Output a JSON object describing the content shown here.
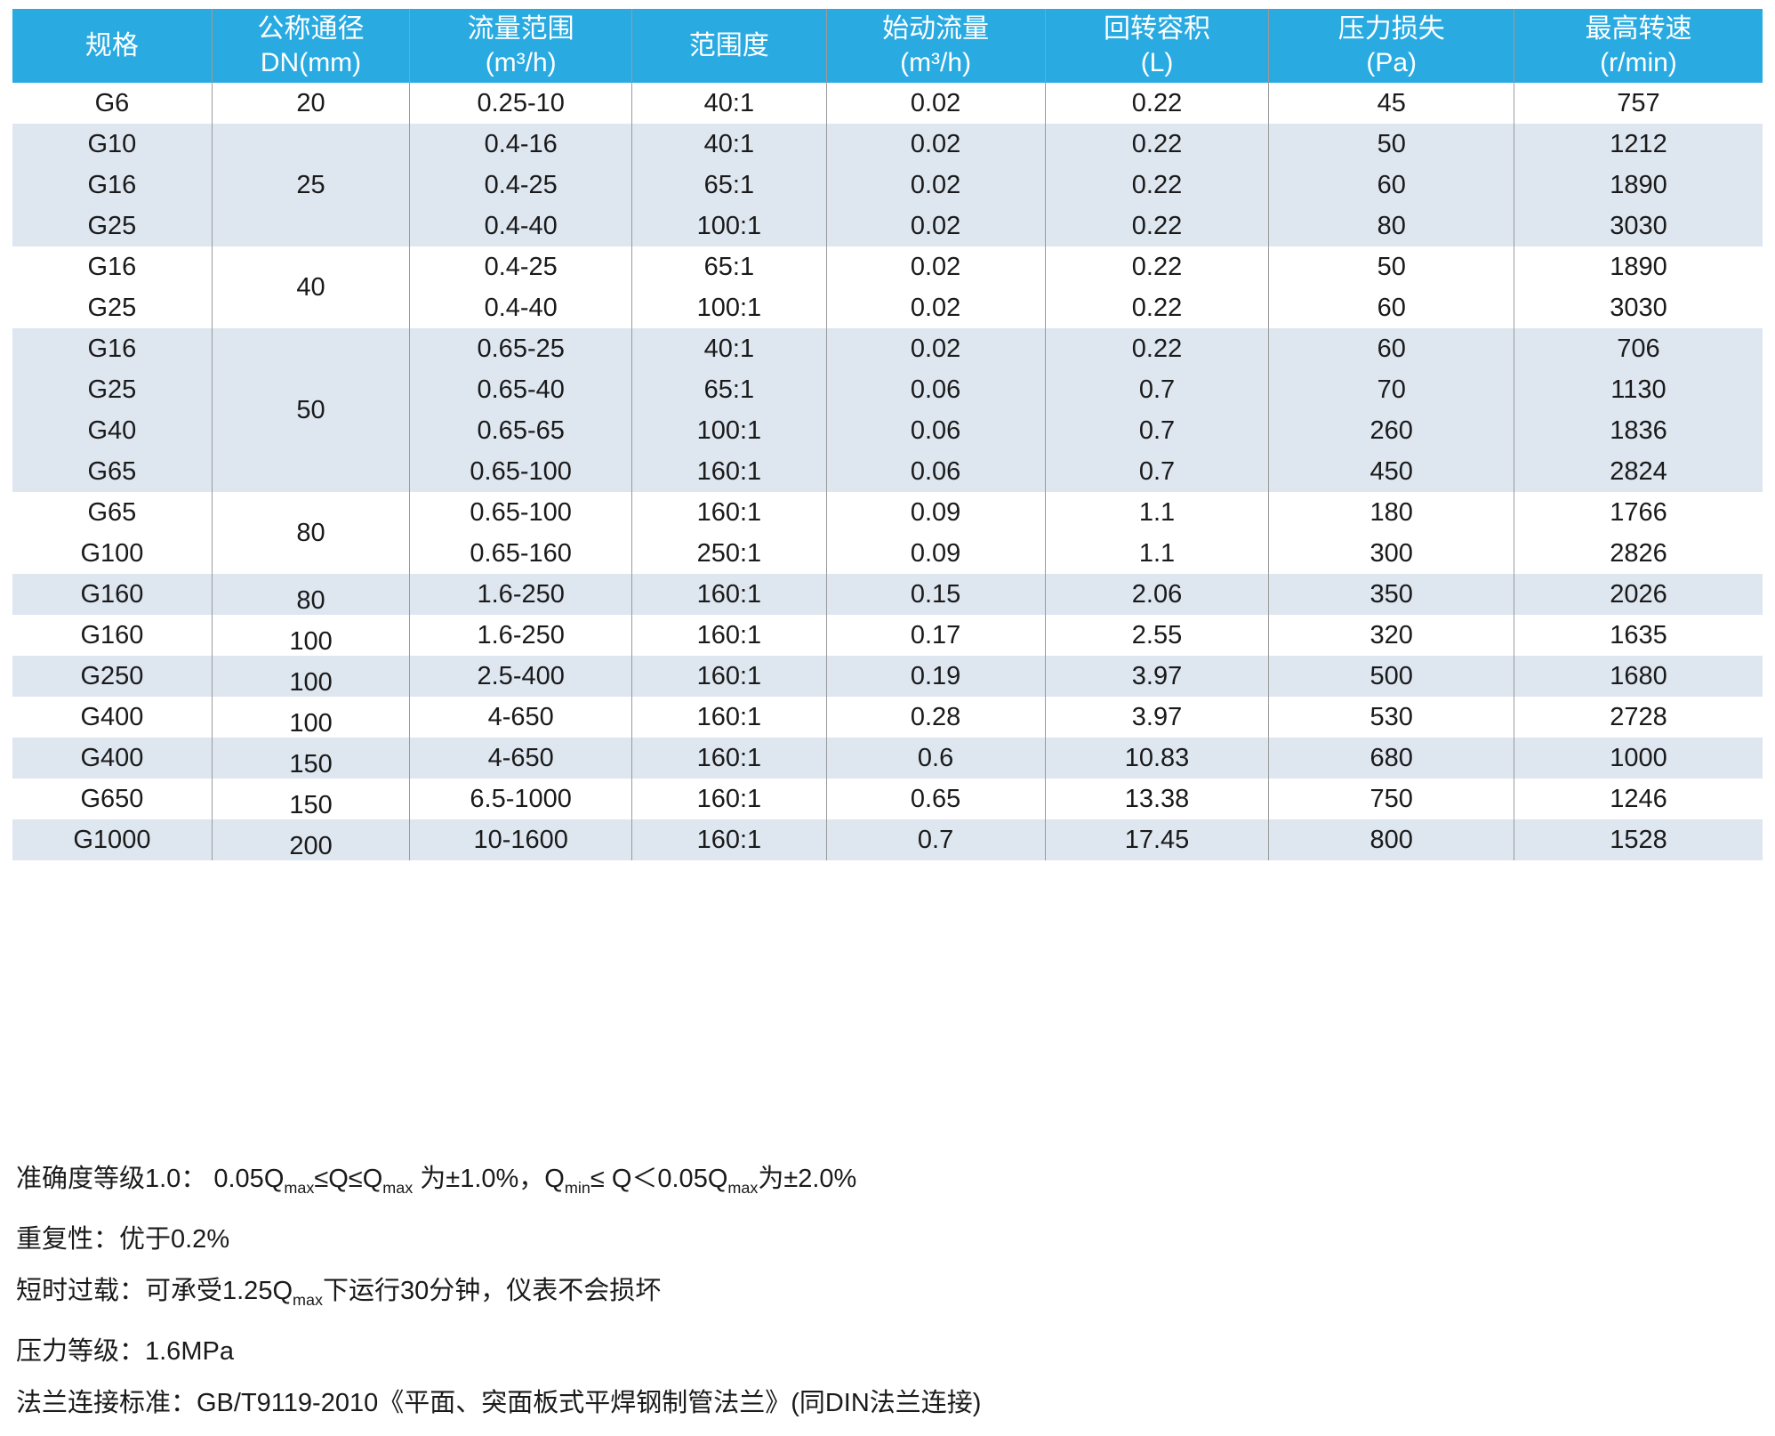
{
  "colors": {
    "header_bg": "#29abe2",
    "header_text": "#ffffff",
    "row_stripe": "#dee6f0",
    "row_white": "#ffffff",
    "divider": "#9b9b9b",
    "text": "#1a1a1a"
  },
  "table": {
    "columns": [
      {
        "id": "spec",
        "label": "规格",
        "unit": ""
      },
      {
        "id": "dn",
        "label": "公称通径",
        "unit": "DN(mm)"
      },
      {
        "id": "flow",
        "label": "流量范围",
        "unit": "(m³/h)"
      },
      {
        "id": "range",
        "label": "范围度",
        "unit": ""
      },
      {
        "id": "start",
        "label": "始动流量",
        "unit": "(m³/h)"
      },
      {
        "id": "volume",
        "label": "回转容积",
        "unit": "(L)"
      },
      {
        "id": "loss",
        "label": "压力损失",
        "unit": "(Pa)"
      },
      {
        "id": "speed",
        "label": "最高转速",
        "unit": "(r/min)"
      }
    ],
    "rows": [
      {
        "spec": "G6",
        "dn": "20",
        "dn_rowspan": 1,
        "flow": "0.25-10",
        "range": "40:1",
        "start": "0.02",
        "volume": "0.22",
        "loss": "45",
        "speed": "757",
        "shaded": false
      },
      {
        "spec": "G10",
        "dn": "25",
        "dn_rowspan": 3,
        "flow": "0.4-16",
        "range": "40:1",
        "start": "0.02",
        "volume": "0.22",
        "loss": "50",
        "speed": "1212",
        "shaded": true
      },
      {
        "spec": "G16",
        "dn": null,
        "flow": "0.4-25",
        "range": "65:1",
        "start": "0.02",
        "volume": "0.22",
        "loss": "60",
        "speed": "1890",
        "shaded": true
      },
      {
        "spec": "G25",
        "dn": null,
        "flow": "0.4-40",
        "range": "100:1",
        "start": "0.02",
        "volume": "0.22",
        "loss": "80",
        "speed": "3030",
        "shaded": true
      },
      {
        "spec": "G16",
        "dn": "40",
        "dn_rowspan": 2,
        "flow": "0.4-25",
        "range": "65:1",
        "start": "0.02",
        "volume": "0.22",
        "loss": "50",
        "speed": "1890",
        "shaded": false
      },
      {
        "spec": "G25",
        "dn": null,
        "flow": "0.4-40",
        "range": "100:1",
        "start": "0.02",
        "volume": "0.22",
        "loss": "60",
        "speed": "3030",
        "shaded": false
      },
      {
        "spec": "G16",
        "dn": "50",
        "dn_rowspan": 4,
        "flow": "0.65-25",
        "range": "40:1",
        "start": "0.02",
        "volume": "0.22",
        "loss": "60",
        "speed": "706",
        "shaded": true
      },
      {
        "spec": "G25",
        "dn": null,
        "flow": "0.65-40",
        "range": "65:1",
        "start": "0.06",
        "volume": "0.7",
        "loss": "70",
        "speed": "1130",
        "shaded": true
      },
      {
        "spec": "G40",
        "dn": null,
        "flow": "0.65-65",
        "range": "100:1",
        "start": "0.06",
        "volume": "0.7",
        "loss": "260",
        "speed": "1836",
        "shaded": true
      },
      {
        "spec": "G65",
        "dn": null,
        "flow": "0.65-100",
        "range": "160:1",
        "start": "0.06",
        "volume": "0.7",
        "loss": "450",
        "speed": "2824",
        "shaded": true
      },
      {
        "spec": "G65",
        "dn": "80",
        "dn_rowspan": 2,
        "flow": "0.65-100",
        "range": "160:1",
        "start": "0.09",
        "volume": "1.1",
        "loss": "180",
        "speed": "1766",
        "shaded": false
      },
      {
        "spec": "G100",
        "dn": null,
        "flow": "0.65-160",
        "range": "250:1",
        "start": "0.09",
        "volume": "1.1",
        "loss": "300",
        "speed": "2826",
        "shaded": false
      },
      {
        "spec": "G160",
        "dn": "80",
        "dn_rowspan": 1,
        "flow": "1.6-250",
        "range": "160:1",
        "start": "0.15",
        "volume": "2.06",
        "loss": "350",
        "speed": "2026",
        "shaded": true
      },
      {
        "spec": "G160",
        "dn": "100",
        "dn_rowspan": 1,
        "flow": "1.6-250",
        "range": "160:1",
        "start": "0.17",
        "volume": "2.55",
        "loss": "320",
        "speed": "1635",
        "shaded": false
      },
      {
        "spec": "G250",
        "dn": "100",
        "dn_rowspan": 1,
        "flow": "2.5-400",
        "range": "160:1",
        "start": "0.19",
        "volume": "3.97",
        "loss": "500",
        "speed": "1680",
        "shaded": true
      },
      {
        "spec": "G400",
        "dn": "100",
        "dn_rowspan": 1,
        "flow": "4-650",
        "range": "160:1",
        "start": "0.28",
        "volume": "3.97",
        "loss": "530",
        "speed": "2728",
        "shaded": false
      },
      {
        "spec": "G400",
        "dn": "150",
        "dn_rowspan": 1,
        "flow": "4-650",
        "range": "160:1",
        "start": "0.6",
        "volume": "10.83",
        "loss": "680",
        "speed": "1000",
        "shaded": true
      },
      {
        "spec": "G650",
        "dn": "150",
        "dn_rowspan": 1,
        "flow": "6.5-1000",
        "range": "160:1",
        "start": "0.65",
        "volume": "13.38",
        "loss": "750",
        "speed": "1246",
        "shaded": false
      },
      {
        "spec": "G1000",
        "dn": "200",
        "dn_rowspan": 1,
        "flow": "10-1600",
        "range": "160:1",
        "start": "0.7",
        "volume": "17.45",
        "loss": "800",
        "speed": "1528",
        "shaded": true
      }
    ]
  },
  "notes": [
    "准确度等级1.0： 0.05Qmax≤Q≤Qmax 为±1.0%，Qmin≤ Q＜0.05Qmax为±2.0%",
    "重复性：优于0.2%",
    "短时过载：可承受1.25Qmax下运行30分钟，仪表不会损坏",
    "压力等级：1.6MPa",
    "法兰连接标准：GB/T9119-2010《平面、突面板式平焊钢制管法兰》(同DIN法兰连接)"
  ]
}
